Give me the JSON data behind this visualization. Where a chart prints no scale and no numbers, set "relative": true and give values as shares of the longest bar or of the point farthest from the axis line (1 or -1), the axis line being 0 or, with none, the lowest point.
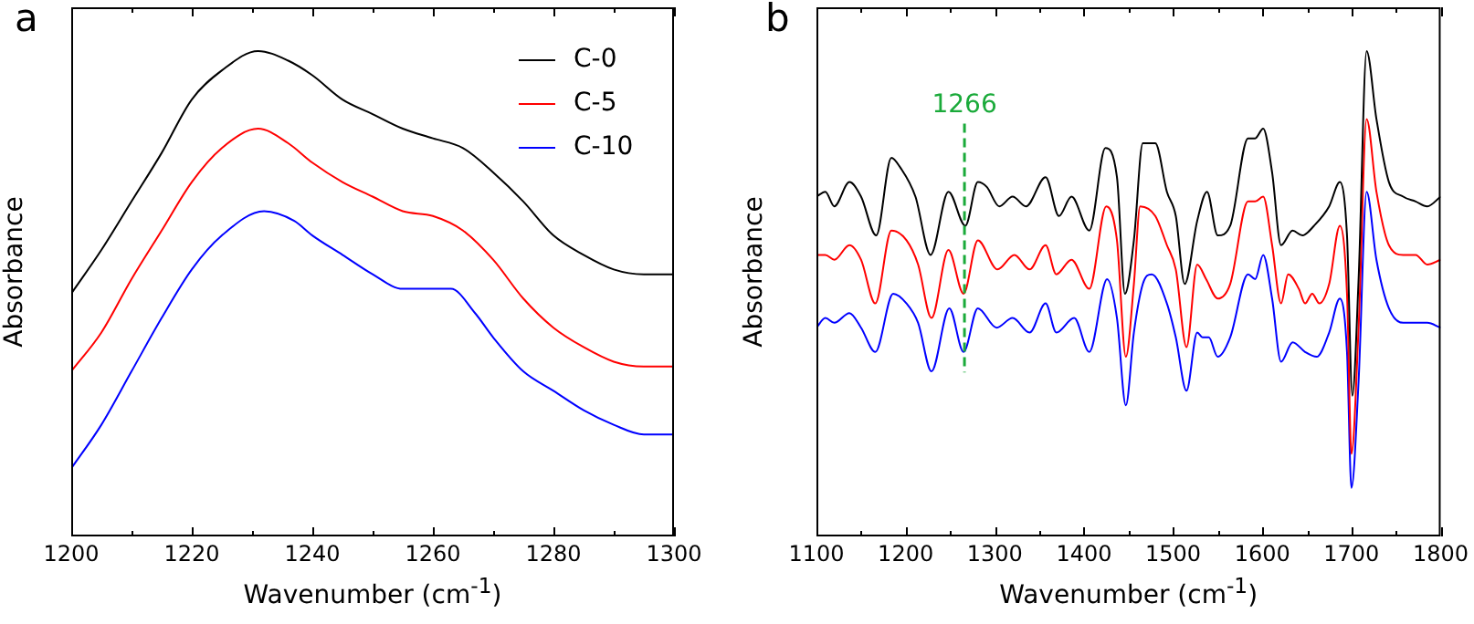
{
  "chart_data": [
    {
      "type": "line",
      "title": "a",
      "xlabel": "Wavenumber (cm$^{-1}$)",
      "ylabel": "Absorbance",
      "relative": true,
      "legend": "top right",
      "grid": false,
      "marker": "none",
      "line_style": "solid",
      "xlim": [
        1200,
        1300
      ],
      "xticks": [
        1200,
        {
          "value": 1210,
          "label": null
        },
        1220,
        {
          "value": 1230,
          "label": null
        },
        1240,
        {
          "value": 1250,
          "label": null
        },
        1260,
        {
          "value": 1270,
          "label": null
        },
        1280,
        {
          "value": 1290,
          "label": null
        },
        1300
      ],
      "series": [
        {
          "name": "C-0",
          "color": "#000000",
          "x": [
            1200,
            1205,
            1210,
            1215,
            1220,
            1225,
            1231,
            1236,
            1240,
            1245,
            1250,
            1255,
            1260,
            1265,
            1270,
            1275,
            1280,
            1285,
            1290,
            1295,
            1300
          ],
          "values": [
            0.5,
            0.59,
            0.69,
            0.79,
            0.9,
            0.96,
            1.0,
            0.98,
            0.95,
            0.9,
            0.87,
            0.84,
            0.82,
            0.8,
            0.75,
            0.69,
            0.62,
            0.58,
            0.55,
            0.54,
            0.54
          ]
        },
        {
          "name": "C-5",
          "color": "#ff0000",
          "x": [
            1200,
            1205,
            1210,
            1215,
            1220,
            1225,
            1231,
            1236,
            1240,
            1245,
            1250,
            1255,
            1260,
            1265,
            1270,
            1275,
            1280,
            1285,
            1290,
            1295,
            1300
          ],
          "values": [
            0.34,
            0.42,
            0.53,
            0.63,
            0.73,
            0.8,
            0.84,
            0.81,
            0.77,
            0.73,
            0.7,
            0.67,
            0.66,
            0.63,
            0.57,
            0.49,
            0.43,
            0.39,
            0.36,
            0.35,
            0.35
          ]
        },
        {
          "name": "C-10",
          "color": "#0000ff",
          "x": [
            1200,
            1205,
            1210,
            1215,
            1220,
            1225,
            1232,
            1237,
            1240,
            1245,
            1250,
            1255,
            1260,
            1263,
            1267,
            1270,
            1275,
            1280,
            1285,
            1290,
            1295,
            1300
          ],
          "values": [
            0.14,
            0.23,
            0.34,
            0.45,
            0.55,
            0.62,
            0.67,
            0.65,
            0.62,
            0.58,
            0.54,
            0.51,
            0.51,
            0.51,
            0.46,
            0.41,
            0.34,
            0.3,
            0.26,
            0.23,
            0.21,
            0.21
          ]
        }
      ]
    },
    {
      "type": "line",
      "title": "b",
      "xlabel": "Wavenumber (cm$^{-1}$)",
      "ylabel": "Absorbance",
      "relative": true,
      "legend": false,
      "grid": false,
      "marker": "none",
      "line_style": "solid",
      "xlim": [
        1100,
        1800
      ],
      "xticks": [
        1100,
        {
          "value": 1150,
          "label": null
        },
        1200,
        {
          "value": 1250,
          "label": null
        },
        1300,
        {
          "value": 1350,
          "label": null
        },
        1400,
        {
          "value": 1450,
          "label": null
        },
        1500,
        {
          "value": 1550,
          "label": null
        },
        1600,
        {
          "value": 1650,
          "label": null
        },
        1700,
        {
          "value": 1750,
          "label": null
        },
        1800
      ],
      "ref_lines": [
        {
          "axis": "x",
          "value": 1266,
          "label": "1266",
          "color": "#1aaa3a",
          "line_style": "dashed"
        }
      ],
      "series": [
        {
          "color": "#000000",
          "x": [
            1100,
            1110,
            1120,
            1137,
            1150,
            1167,
            1184,
            1194,
            1211,
            1228,
            1248,
            1267,
            1281,
            1291,
            1305,
            1320,
            1335,
            1357,
            1372,
            1386,
            1406,
            1424,
            1437,
            1446,
            1456,
            1466,
            1480,
            1493,
            1503,
            1513,
            1527,
            1538,
            1550,
            1564,
            1584,
            1592,
            1601,
            1611,
            1621,
            1634,
            1645,
            1658,
            1675,
            1687,
            1695,
            1701,
            1708,
            1717,
            1728,
            1742,
            1758,
            1772,
            1785,
            1800
          ],
          "values": [
            0.7,
            0.71,
            0.68,
            0.73,
            0.7,
            0.62,
            0.78,
            0.76,
            0.7,
            0.58,
            0.71,
            0.64,
            0.73,
            0.72,
            0.68,
            0.7,
            0.68,
            0.74,
            0.66,
            0.7,
            0.63,
            0.8,
            0.74,
            0.5,
            0.61,
            0.81,
            0.81,
            0.71,
            0.66,
            0.52,
            0.65,
            0.71,
            0.62,
            0.64,
            0.82,
            0.82,
            0.84,
            0.75,
            0.6,
            0.63,
            0.62,
            0.64,
            0.68,
            0.73,
            0.62,
            0.29,
            0.53,
            1.0,
            0.86,
            0.73,
            0.7,
            0.69,
            0.68,
            0.7
          ]
        },
        {
          "color": "#ff0000",
          "x": [
            1100,
            1110,
            1120,
            1137,
            1150,
            1166,
            1184,
            1201,
            1214,
            1229,
            1248,
            1265,
            1281,
            1303,
            1322,
            1339,
            1357,
            1369,
            1386,
            1406,
            1425,
            1437,
            1447,
            1456,
            1463,
            1480,
            1493,
            1503,
            1515,
            1527,
            1537,
            1550,
            1564,
            1584,
            1592,
            1601,
            1611,
            1621,
            1629,
            1641,
            1648,
            1656,
            1664,
            1675,
            1687,
            1695,
            1700,
            1708,
            1717,
            1728,
            1742,
            1758,
            1772,
            1785,
            1800
          ],
          "values": [
            0.58,
            0.58,
            0.57,
            0.6,
            0.57,
            0.48,
            0.63,
            0.61,
            0.56,
            0.45,
            0.59,
            0.5,
            0.61,
            0.55,
            0.58,
            0.55,
            0.6,
            0.54,
            0.57,
            0.51,
            0.68,
            0.61,
            0.37,
            0.52,
            0.68,
            0.66,
            0.6,
            0.55,
            0.39,
            0.56,
            0.53,
            0.49,
            0.52,
            0.69,
            0.69,
            0.7,
            0.6,
            0.48,
            0.54,
            0.51,
            0.48,
            0.5,
            0.48,
            0.52,
            0.64,
            0.5,
            0.17,
            0.43,
            0.86,
            0.71,
            0.6,
            0.58,
            0.58,
            0.56,
            0.57
          ]
        },
        {
          "color": "#0000ff",
          "x": [
            1100,
            1110,
            1120,
            1137,
            1150,
            1166,
            1186,
            1201,
            1214,
            1229,
            1249,
            1265,
            1281,
            1302,
            1320,
            1339,
            1357,
            1369,
            1389,
            1406,
            1426,
            1437,
            1447,
            1456,
            1466,
            1476,
            1493,
            1503,
            1515,
            1527,
            1533,
            1540,
            1550,
            1564,
            1584,
            1592,
            1601,
            1611,
            1621,
            1634,
            1648,
            1661,
            1675,
            1687,
            1695,
            1700,
            1708,
            1717,
            1728,
            1742,
            1758,
            1772,
            1785,
            1800
          ],
          "values": [
            0.43,
            0.45,
            0.44,
            0.46,
            0.43,
            0.38,
            0.5,
            0.48,
            0.44,
            0.34,
            0.47,
            0.38,
            0.47,
            0.43,
            0.45,
            0.42,
            0.48,
            0.42,
            0.45,
            0.38,
            0.53,
            0.45,
            0.27,
            0.42,
            0.52,
            0.54,
            0.48,
            0.41,
            0.3,
            0.42,
            0.41,
            0.41,
            0.37,
            0.41,
            0.54,
            0.53,
            0.58,
            0.49,
            0.36,
            0.4,
            0.38,
            0.37,
            0.42,
            0.49,
            0.38,
            0.1,
            0.32,
            0.71,
            0.57,
            0.47,
            0.44,
            0.44,
            0.44,
            0.43
          ]
        }
      ]
    }
  ]
}
